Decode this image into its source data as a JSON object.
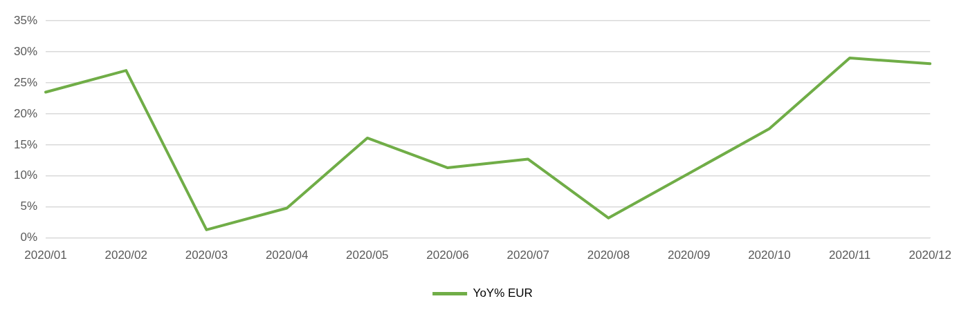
{
  "chart_data": {
    "type": "line",
    "categories": [
      "2020/01",
      "2020/02",
      "2020/03",
      "2020/04",
      "2020/05",
      "2020/06",
      "2020/07",
      "2020/08",
      "2020/09",
      "2020/10",
      "2020/11",
      "2020/12"
    ],
    "series": [
      {
        "name": "YoY% EUR",
        "color": "#70ad47",
        "values": [
          23.5,
          27.0,
          1.3,
          4.8,
          16.1,
          11.3,
          12.7,
          3.2,
          10.4,
          17.6,
          29.0,
          28.1
        ]
      }
    ],
    "ylim": [
      0,
      35
    ],
    "yticks": [
      {
        "value": 0,
        "label": "0%"
      },
      {
        "value": 5,
        "label": "5%"
      },
      {
        "value": 10,
        "label": "10%"
      },
      {
        "value": 15,
        "label": "15%"
      },
      {
        "value": 20,
        "label": "20%"
      },
      {
        "value": 25,
        "label": "25%"
      },
      {
        "value": 30,
        "label": "30%"
      },
      {
        "value": 35,
        "label": "35%"
      }
    ],
    "grid": "y",
    "legend": "bottom",
    "marker": "none",
    "line_style": "solid"
  }
}
